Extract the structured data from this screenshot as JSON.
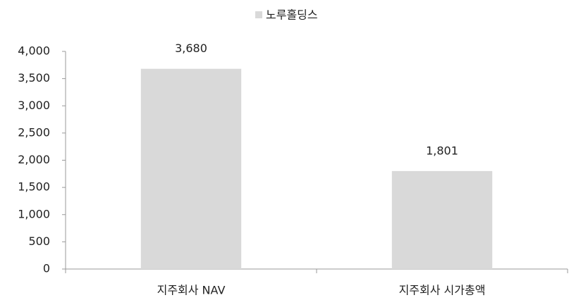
{
  "chart_data": {
    "type": "bar",
    "categories": [
      "지주회사 NAV",
      "지주회사 시가총액"
    ],
    "series": [
      {
        "name": "노루홀딩스",
        "color": "#d9d9d9",
        "values": [
          3680,
          1801
        ],
        "value_labels": [
          "3,680",
          "1,801"
        ]
      }
    ],
    "ylim": [
      0,
      4000
    ],
    "yticks": [
      0,
      500,
      {
        "value": 1000,
        "label": "1,000"
      },
      {
        "value": 1500,
        "label": "1,500"
      },
      {
        "value": 2000,
        "label": "2,000"
      },
      {
        "value": 2500,
        "label": "2,500"
      },
      {
        "value": 3000,
        "label": "3,000"
      },
      {
        "value": 3500,
        "label": "3,500"
      },
      {
        "value": 4000,
        "label": "4,000"
      }
    ],
    "legend": "top"
  }
}
